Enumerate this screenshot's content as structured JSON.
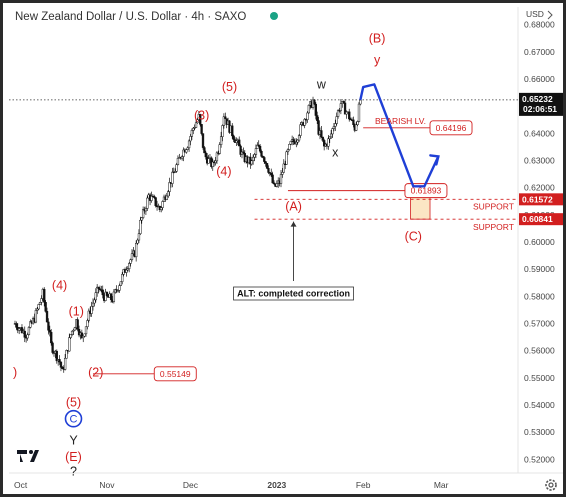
{
  "header": {
    "symbol": "New Zealand Dollar / U.S. Dollar · 4h · SAXO",
    "currency": "USD"
  },
  "colors": {
    "wave_label": "#d21f1f",
    "projection": "#1f3fd6",
    "candle": "#111111",
    "support_box": "#fbe6c4",
    "price_tag": "#111111",
    "level_tag": "#d21f1f"
  },
  "icons": {
    "logo": "tradingview-logo-icon",
    "settings": "gear-icon"
  },
  "chart_data": {
    "type": "candlestick",
    "yaxis": {
      "min": 0.515,
      "max": 0.685,
      "ticks": [
        0.68,
        0.67,
        0.66,
        0.65,
        0.64,
        0.63,
        0.62,
        0.61,
        0.6,
        0.59,
        0.58,
        0.57,
        0.56,
        0.55,
        0.54,
        0.53,
        0.52
      ],
      "tick_labels": [
        "0.68000",
        "0.67000",
        "0.66000",
        "0.65000",
        "0.64000",
        "0.63000",
        "0.62000",
        "0.61000",
        "0.60000",
        "0.59000",
        "0.58000",
        "0.57000",
        "0.56000",
        "0.55000",
        "0.54000",
        "0.53000",
        "0.52000"
      ]
    },
    "xaxis": {
      "ticks": [
        {
          "label": "Oct",
          "t": 0
        },
        {
          "label": "Nov",
          "t": 31
        },
        {
          "label": "Dec",
          "t": 61
        },
        {
          "label": "2023",
          "t": 92
        },
        {
          "label": "Feb",
          "t": 123
        },
        {
          "label": "Mar",
          "t": 151
        }
      ],
      "t_min": -2,
      "t_max": 175
    },
    "price_path": [
      {
        "t": -2,
        "p": 0.57
      },
      {
        "t": 2,
        "p": 0.566
      },
      {
        "t": 5,
        "p": 0.572
      },
      {
        "t": 8,
        "p": 0.581
      },
      {
        "t": 11,
        "p": 0.562
      },
      {
        "t": 14,
        "p": 0.556
      },
      {
        "t": 15,
        "p": 0.552
      },
      {
        "t": 18,
        "p": 0.566
      },
      {
        "t": 20,
        "p": 0.571
      },
      {
        "t": 22,
        "p": 0.564
      },
      {
        "t": 25,
        "p": 0.575
      },
      {
        "t": 28,
        "p": 0.583
      },
      {
        "t": 30,
        "p": 0.58
      },
      {
        "t": 33,
        "p": 0.579
      },
      {
        "t": 36,
        "p": 0.586
      },
      {
        "t": 38,
        "p": 0.591
      },
      {
        "t": 41,
        "p": 0.596
      },
      {
        "t": 43,
        "p": 0.607
      },
      {
        "t": 46,
        "p": 0.617
      },
      {
        "t": 48,
        "p": 0.615
      },
      {
        "t": 50,
        "p": 0.612
      },
      {
        "t": 53,
        "p": 0.62
      },
      {
        "t": 56,
        "p": 0.628
      },
      {
        "t": 58,
        "p": 0.633
      },
      {
        "t": 60,
        "p": 0.636
      },
      {
        "t": 62,
        "p": 0.642
      },
      {
        "t": 64,
        "p": 0.646
      },
      {
        "t": 66,
        "p": 0.632
      },
      {
        "t": 69,
        "p": 0.628
      },
      {
        "t": 71,
        "p": 0.634
      },
      {
        "t": 73,
        "p": 0.647
      },
      {
        "t": 75,
        "p": 0.642
      },
      {
        "t": 78,
        "p": 0.636
      },
      {
        "t": 80,
        "p": 0.631
      },
      {
        "t": 83,
        "p": 0.629
      },
      {
        "t": 85,
        "p": 0.635
      },
      {
        "t": 87,
        "p": 0.632
      },
      {
        "t": 89,
        "p": 0.627
      },
      {
        "t": 91,
        "p": 0.62
      },
      {
        "t": 93,
        "p": 0.622
      },
      {
        "t": 95,
        "p": 0.63
      },
      {
        "t": 97,
        "p": 0.636
      },
      {
        "t": 99,
        "p": 0.638
      },
      {
        "t": 101,
        "p": 0.643
      },
      {
        "t": 103,
        "p": 0.648
      },
      {
        "t": 105,
        "p": 0.652
      },
      {
        "t": 107,
        "p": 0.641
      },
      {
        "t": 109,
        "p": 0.635
      },
      {
        "t": 111,
        "p": 0.638
      },
      {
        "t": 113,
        "p": 0.645
      },
      {
        "t": 115,
        "p": 0.651
      },
      {
        "t": 117,
        "p": 0.648
      },
      {
        "t": 119,
        "p": 0.644
      },
      {
        "t": 120,
        "p": 0.642
      },
      {
        "t": 121,
        "p": 0.646
      },
      {
        "t": 122,
        "p": 0.6523
      }
    ],
    "wave_labels": [
      {
        "text": "(B)",
        "t": 128,
        "p": 0.6735
      },
      {
        "text": "y",
        "t": 128,
        "p": 0.6655
      },
      {
        "text": "w",
        "t": 108,
        "p": 0.6565
      },
      {
        "text": "(5)",
        "t": 75,
        "p": 0.6555
      },
      {
        "text": "(3)",
        "t": 65,
        "p": 0.645
      },
      {
        "text": "(4)",
        "t": 73,
        "p": 0.6245
      },
      {
        "text": "x",
        "t": 113,
        "p": 0.6315
      },
      {
        "text": "(A)",
        "t": 98,
        "p": 0.6115
      },
      {
        "text": "(C)",
        "t": 141,
        "p": 0.6005
      },
      {
        "text": "(4)",
        "t": 14,
        "p": 0.5825
      },
      {
        "text": "(1)",
        "t": 20,
        "p": 0.573
      },
      {
        "text": "(2)",
        "t": 27,
        "p": 0.5505
      },
      {
        "text": "(5)",
        "t": 19,
        "p": 0.5395
      },
      {
        "text": "Y",
        "t": 19,
        "p": 0.5255
      },
      {
        "text": "(E)",
        "t": 19,
        "p": 0.5195
      },
      {
        "text": "?",
        "t": 19,
        "p": 0.514
      }
    ],
    "circled_label": {
      "text": "C",
      "t": 19,
      "p": 0.5335
    },
    "left_cut_label": {
      "text": ")",
      "t": -2,
      "p": 0.5505
    },
    "levels": [
      {
        "label": "0.55149",
        "p": 0.5515,
        "t_from": 26,
        "t_to": 48
      },
      {
        "label": "0.61893",
        "p": 0.6189,
        "t_from": 96,
        "t_to": 138
      },
      {
        "label": "0.64196",
        "p": 0.642,
        "t_from": 123,
        "t_to": 147
      }
    ],
    "bearish_label": "BEARISH LV.",
    "support_lines": [
      {
        "label": "SUPPORT",
        "p": 0.6157,
        "tag": "0.61572"
      },
      {
        "label": "SUPPORT",
        "p": 0.6084,
        "tag": "0.60841"
      }
    ],
    "current_price": {
      "value": 0.6523,
      "label": "0.65232",
      "countdown": "02:06:51"
    },
    "annotation": "ALT: completed correction",
    "projection_path": [
      {
        "t": 122,
        "p": 0.6523
      },
      {
        "t": 123,
        "p": 0.657
      },
      {
        "t": 127,
        "p": 0.658
      },
      {
        "t": 141,
        "p": 0.6205
      },
      {
        "t": 145,
        "p": 0.6205
      },
      {
        "t": 150,
        "p": 0.6315
      }
    ],
    "support_zone": {
      "t_from": 140,
      "t_to": 147,
      "p_from": 0.6084,
      "p_to": 0.6205
    }
  }
}
